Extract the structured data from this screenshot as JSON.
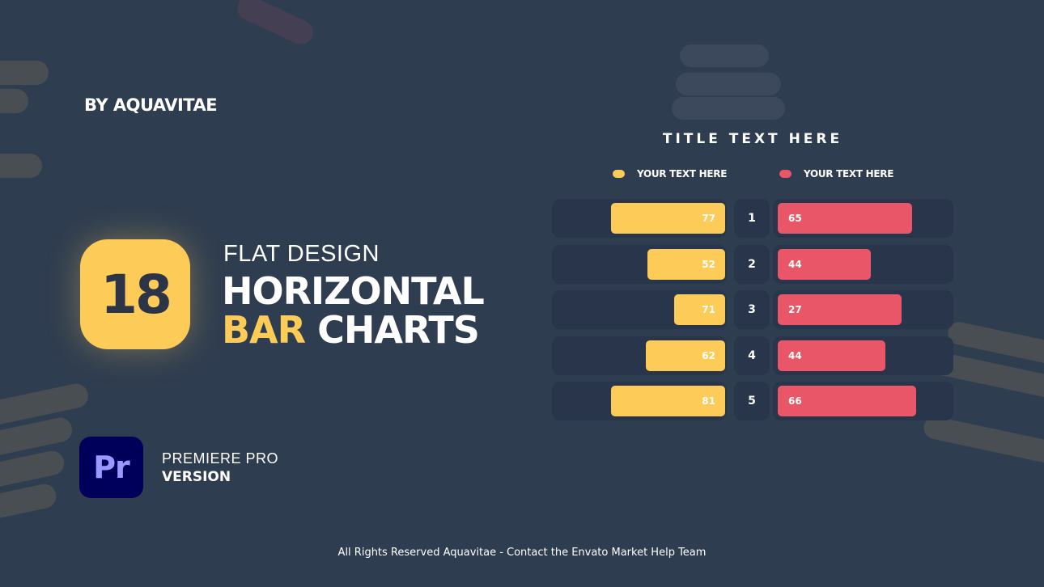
{
  "promo": {
    "byline": "BY AQUAVITAE",
    "badge_number": "18",
    "subtitle": "FLAT DESIGN",
    "headline_line1": "HORIZONTAL",
    "headline_highlight": "BAR",
    "headline_rest": "CHARTS",
    "app_icon_text": "Pr",
    "app_line1": "PREMIERE PRO",
    "app_line2": "VERSION",
    "footer": "All Rights Reserved Aquavitae - Contact the Envato Market Help Team"
  },
  "colors": {
    "background": "#2f3d50",
    "yellow": "#fdcb58",
    "red": "#e85667",
    "panel": "#29354a",
    "premiere_bg": "#00005b",
    "premiere_text": "#9999ff"
  },
  "chart_data": {
    "type": "bar",
    "title": "TITLE TEXT HERE",
    "categories": [
      "1",
      "2",
      "3",
      "4",
      "5"
    ],
    "series": [
      {
        "name": "YOUR TEXT HERE",
        "color": "#fdcb58",
        "values": [
          77,
          52,
          71,
          62,
          81
        ]
      },
      {
        "name": "YOUR TEXT HERE",
        "color": "#e85667",
        "values": [
          65,
          44,
          27,
          44,
          66
        ]
      }
    ],
    "legend": "top"
  }
}
